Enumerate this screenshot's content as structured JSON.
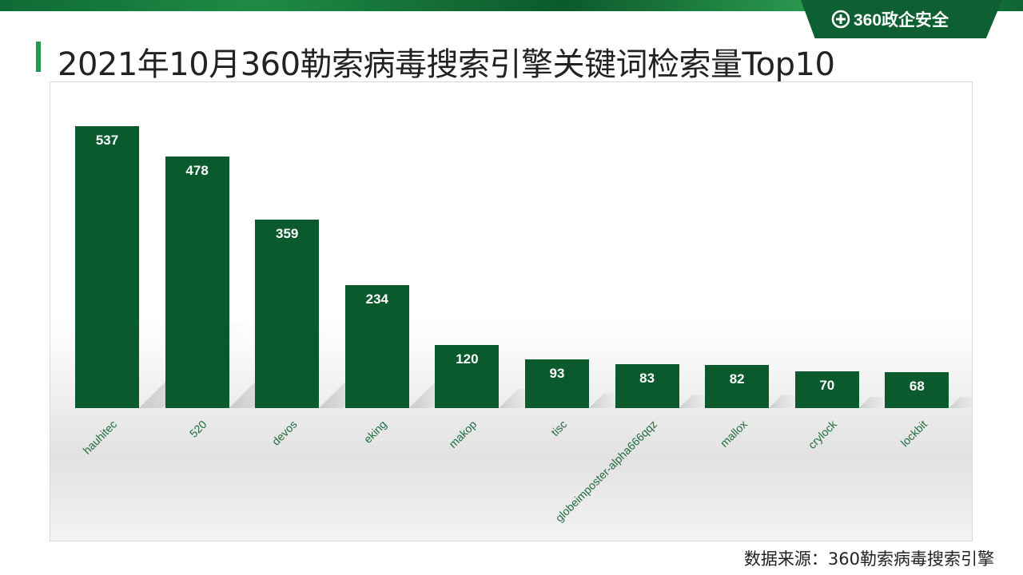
{
  "header": {
    "logo_text": "360政企安全",
    "title": "2021年10月360勒索病毒搜索引擎关键词检索量Top10"
  },
  "chart_data": {
    "type": "bar",
    "categories": [
      "hauhitec",
      "520",
      "devos",
      "eking",
      "makop",
      "tisc",
      "globeimposter-alpha666qqz",
      "mallox",
      "crylock",
      "lockbit"
    ],
    "values": [
      537,
      478,
      359,
      234,
      120,
      93,
      83,
      82,
      70,
      68
    ],
    "title": "",
    "xlabel": "",
    "ylabel": "",
    "ylim": [
      0,
      600
    ],
    "grid": false,
    "legend": "none",
    "bar_color": "#0a5a2e"
  },
  "footer": {
    "source": "数据来源：360勒索病毒搜索引擎"
  },
  "colors": {
    "accent": "#1f9a48",
    "brand_dark": "#0e5f31"
  }
}
